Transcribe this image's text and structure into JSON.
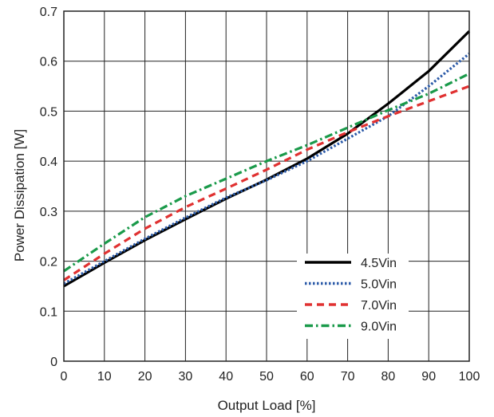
{
  "chart_data": {
    "type": "line",
    "title": "",
    "xlabel": "Output Load [%]",
    "ylabel": "Power Dissipation [W]",
    "xlim": [
      0,
      100
    ],
    "ylim": [
      0,
      0.7
    ],
    "xticks": [
      "0",
      "10",
      "20",
      "30",
      "40",
      "50",
      "60",
      "70",
      "80",
      "90",
      "100"
    ],
    "yticks": [
      "0",
      "0.1",
      "0.2",
      "0.3",
      "0.4",
      "0.5",
      "0.6",
      "0.7"
    ],
    "grid": true,
    "legend_position": "lower-right",
    "x": [
      0,
      10,
      20,
      30,
      40,
      50,
      60,
      70,
      80,
      90,
      100
    ],
    "series": [
      {
        "name": "4.5Vin",
        "color": "#000000",
        "dash": "solid",
        "values": [
          0.15,
          0.197,
          0.242,
          0.284,
          0.325,
          0.363,
          0.405,
          0.455,
          0.515,
          0.58,
          0.66
        ]
      },
      {
        "name": "5.0Vin",
        "color": "#2b5aa8",
        "dash": "dotted",
        "values": [
          0.155,
          0.2,
          0.245,
          0.287,
          0.327,
          0.362,
          0.4,
          0.445,
          0.49,
          0.55,
          0.615
        ]
      },
      {
        "name": "7.0Vin",
        "color": "#e03131",
        "dash": "dashed",
        "values": [
          0.162,
          0.215,
          0.265,
          0.308,
          0.345,
          0.383,
          0.423,
          0.458,
          0.49,
          0.52,
          0.55
        ]
      },
      {
        "name": "9.0Vin",
        "color": "#1a9a4a",
        "dash": "dashdot",
        "values": [
          0.18,
          0.235,
          0.288,
          0.33,
          0.365,
          0.4,
          0.432,
          0.467,
          0.502,
          0.535,
          0.575
        ]
      }
    ]
  }
}
